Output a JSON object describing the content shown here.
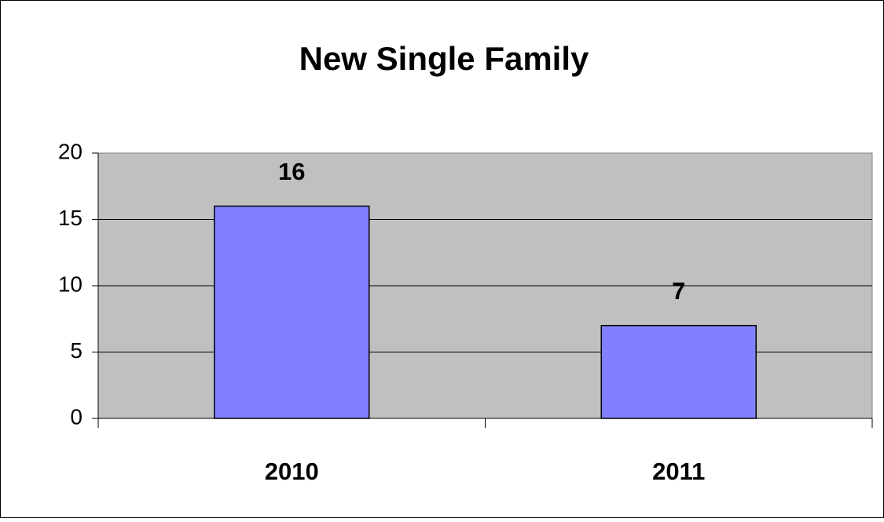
{
  "chart_data": {
    "type": "bar",
    "title": "New Single Family",
    "categories": [
      "2010",
      "2011"
    ],
    "values": [
      16,
      7
    ],
    "color": "#8080ff",
    "ylim": [
      0,
      20
    ],
    "yticks": [
      0,
      5,
      10,
      15,
      20
    ],
    "grid": true,
    "plot_background": "#c0c0c0"
  }
}
